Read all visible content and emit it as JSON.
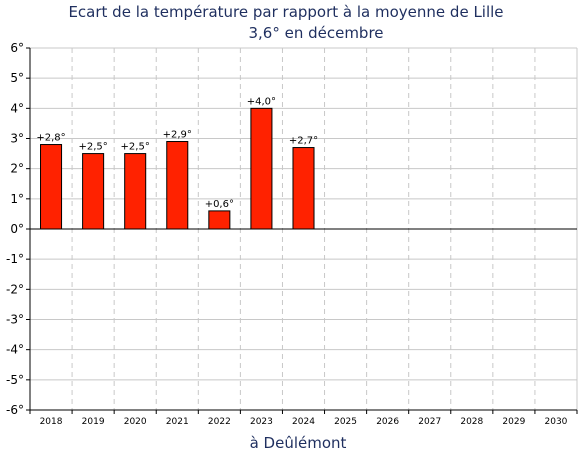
{
  "chart_data": {
    "type": "bar",
    "title": "Ecart de la température par rapport à la moyenne de Lille",
    "subtitle": "3,6° en décembre",
    "xlabel": "à Deûlémont",
    "ylabel": "",
    "categories": [
      "2018",
      "2019",
      "2020",
      "2021",
      "2022",
      "2023",
      "2024",
      "2025",
      "2026",
      "2027",
      "2028",
      "2029",
      "2030"
    ],
    "values": [
      2.8,
      2.5,
      2.5,
      2.9,
      0.6,
      4.0,
      2.7,
      null,
      null,
      null,
      null,
      null,
      null
    ],
    "data_labels": [
      "+2,8°",
      "+2,5°",
      "+2,5°",
      "+2,9°",
      "+0,6°",
      "+4,0°",
      "+2,7°",
      "",
      "",
      "",
      "",
      "",
      ""
    ],
    "ylim": [
      -6,
      6
    ],
    "yticks": [
      -6,
      -5,
      -4,
      -3,
      -2,
      -1,
      0,
      1,
      2,
      3,
      4,
      5,
      6
    ],
    "ytick_labels": [
      "-6°",
      "-5°",
      "-4°",
      "-3°",
      "-2°",
      "-1°",
      "0°",
      "1°",
      "2°",
      "3°",
      "4°",
      "5°",
      "6°"
    ],
    "grid": true,
    "bar_color": "#ff2200",
    "bar_edge_color": "#000000",
    "grid_color": "#c8c8c8"
  }
}
